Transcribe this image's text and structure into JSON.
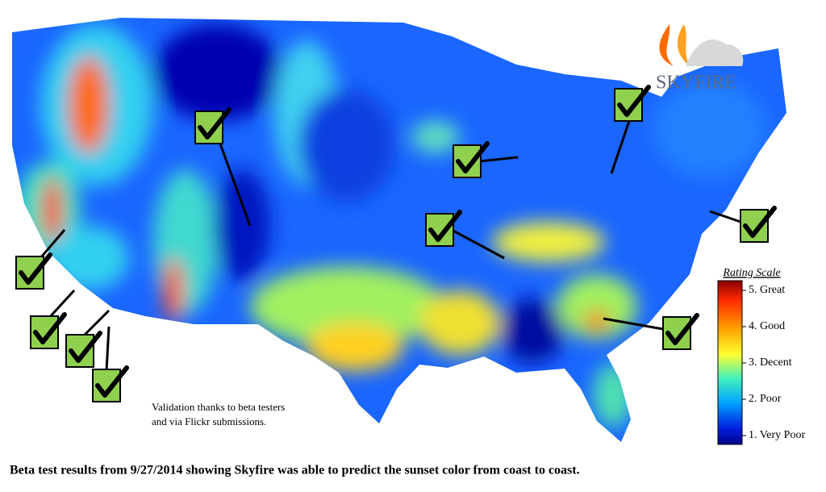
{
  "logo": {
    "name": "SKYFIRE"
  },
  "legend": {
    "title": "Rating Scale",
    "levels": [
      "5. Great",
      "4. Good",
      "3. Decent",
      "2. Poor",
      "1. Very Poor"
    ]
  },
  "note": {
    "lines": [
      "Validation thanks to beta testers",
      "and via Flickr submissions."
    ]
  },
  "caption": "Beta test results from 9/27/2014 showing Skyfire was able to predict the sunset color from coast to coast."
}
